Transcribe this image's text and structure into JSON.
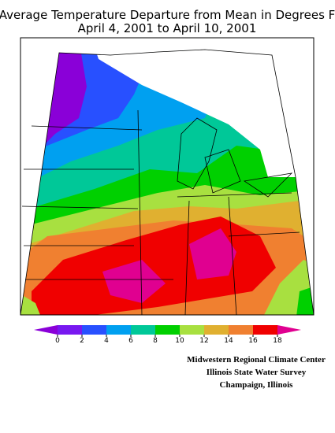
{
  "title": [
    "Average Temperature Departure from Mean in Degrees F",
    "April 4, 2001 to April 10, 2001"
  ],
  "legend": {
    "ticks": [
      0,
      2,
      4,
      6,
      8,
      10,
      12,
      14,
      16,
      18
    ],
    "colors": [
      "#8a00d8",
      "#7818f0",
      "#2850ff",
      "#00a0f0",
      "#00c898",
      "#00d000",
      "#a8e040",
      "#e0b030",
      "#f08030",
      "#f00000",
      "#e00090"
    ]
  },
  "credits": [
    "Midwestern Regional Climate Center",
    "Illinois State Water Survey",
    "Champaign, Illinois"
  ]
}
